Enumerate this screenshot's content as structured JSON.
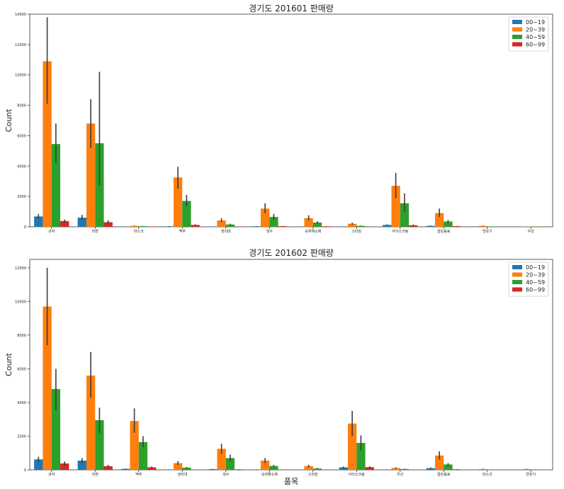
{
  "chart_data": [
    {
      "type": "bar",
      "title": "경기도 201601 판매량",
      "xlabel": "",
      "ylabel": "Count",
      "ylim": [
        0,
        14000
      ],
      "yticks": [
        0,
        2000,
        4000,
        6000,
        8000,
        10000,
        12000,
        14000
      ],
      "legend_position": "top-right",
      "categories": [
        "과자",
        "라면",
        "마스크",
        "맥주",
        "생리대",
        "생수",
        "숙취해소제",
        "스타킹",
        "아이스크림",
        "얼린음료",
        "연유기",
        "우산"
      ],
      "series": [
        {
          "name": "00~19",
          "color": "#1f77b4",
          "values": [
            680,
            600,
            10,
            30,
            20,
            30,
            20,
            10,
            120,
            60,
            5,
            5
          ],
          "err_low": [
            550,
            470,
            5,
            20,
            10,
            20,
            10,
            5,
            90,
            40,
            2,
            2
          ],
          "err_high": [
            850,
            780,
            20,
            50,
            30,
            50,
            30,
            20,
            160,
            90,
            10,
            10
          ]
        },
        {
          "name": "20~39",
          "color": "#ff7f0e",
          "values": [
            10900,
            6800,
            60,
            3250,
            420,
            1200,
            570,
            200,
            2700,
            900,
            60,
            20
          ],
          "err_low": [
            8100,
            5200,
            40,
            2500,
            300,
            900,
            420,
            120,
            1900,
            650,
            40,
            10
          ],
          "err_high": [
            13800,
            8400,
            80,
            3950,
            560,
            1550,
            760,
            270,
            3550,
            1200,
            80,
            30
          ]
        },
        {
          "name": "40~59",
          "color": "#2ca02c",
          "values": [
            5450,
            5500,
            40,
            1700,
            150,
            650,
            280,
            60,
            1550,
            350,
            20,
            10
          ],
          "err_low": [
            4200,
            2700,
            30,
            1350,
            100,
            450,
            200,
            40,
            950,
            250,
            10,
            5
          ],
          "err_high": [
            6800,
            10200,
            55,
            2100,
            200,
            850,
            360,
            80,
            2200,
            450,
            30,
            15
          ]
        },
        {
          "name": "60~99",
          "color": "#d62728",
          "values": [
            380,
            300,
            10,
            120,
            10,
            40,
            30,
            10,
            100,
            40,
            5,
            5
          ],
          "err_low": [
            280,
            180,
            5,
            80,
            5,
            20,
            20,
            5,
            60,
            20,
            2,
            2
          ],
          "err_high": [
            480,
            420,
            20,
            160,
            20,
            60,
            45,
            20,
            150,
            60,
            10,
            10
          ]
        }
      ]
    },
    {
      "type": "bar",
      "title": "경기도 201602 판매량",
      "xlabel": "품목",
      "ylabel": "Count",
      "ylim": [
        0,
        12500
      ],
      "yticks": [
        0,
        2000,
        4000,
        6000,
        8000,
        10000,
        12000
      ],
      "legend_position": "top-right",
      "categories": [
        "과자",
        "라면",
        "맥주",
        "생리대",
        "생수",
        "숙취해소제",
        "스타킹",
        "아이스크림",
        "우산",
        "얼린음료",
        "마스크",
        "연유기"
      ],
      "series": [
        {
          "name": "00~19",
          "color": "#1f77b4",
          "values": [
            620,
            550,
            60,
            20,
            40,
            20,
            10,
            150,
            20,
            100,
            5,
            5
          ],
          "err_low": [
            480,
            420,
            40,
            10,
            20,
            10,
            5,
            100,
            10,
            60,
            2,
            2
          ],
          "err_high": [
            780,
            700,
            80,
            30,
            60,
            30,
            20,
            200,
            30,
            140,
            10,
            10
          ]
        },
        {
          "name": "20~39",
          "color": "#ff7f0e",
          "values": [
            9700,
            5600,
            2900,
            400,
            1250,
            550,
            230,
            2750,
            110,
            850,
            50,
            50
          ],
          "err_low": [
            7400,
            4300,
            2200,
            280,
            950,
            400,
            150,
            2000,
            70,
            620,
            30,
            30
          ],
          "err_high": [
            12000,
            7000,
            3650,
            520,
            1550,
            700,
            300,
            3500,
            150,
            1100,
            70,
            70
          ]
        },
        {
          "name": "40~59",
          "color": "#2ca02c",
          "values": [
            4800,
            2950,
            1650,
            130,
            700,
            230,
            80,
            1600,
            50,
            320,
            20,
            20
          ],
          "err_low": [
            3550,
            2200,
            1350,
            90,
            500,
            170,
            50,
            1150,
            30,
            240,
            10,
            10
          ],
          "err_high": [
            6000,
            3700,
            2000,
            170,
            900,
            290,
            110,
            2050,
            70,
            400,
            30,
            30
          ]
        },
        {
          "name": "60~99",
          "color": "#d62728",
          "values": [
            380,
            220,
            150,
            10,
            30,
            20,
            10,
            160,
            5,
            30,
            5,
            5
          ],
          "err_low": [
            260,
            150,
            100,
            5,
            20,
            10,
            5,
            110,
            2,
            20,
            2,
            2
          ],
          "err_high": [
            500,
            290,
            200,
            20,
            45,
            30,
            20,
            210,
            10,
            45,
            10,
            10
          ]
        }
      ]
    }
  ]
}
